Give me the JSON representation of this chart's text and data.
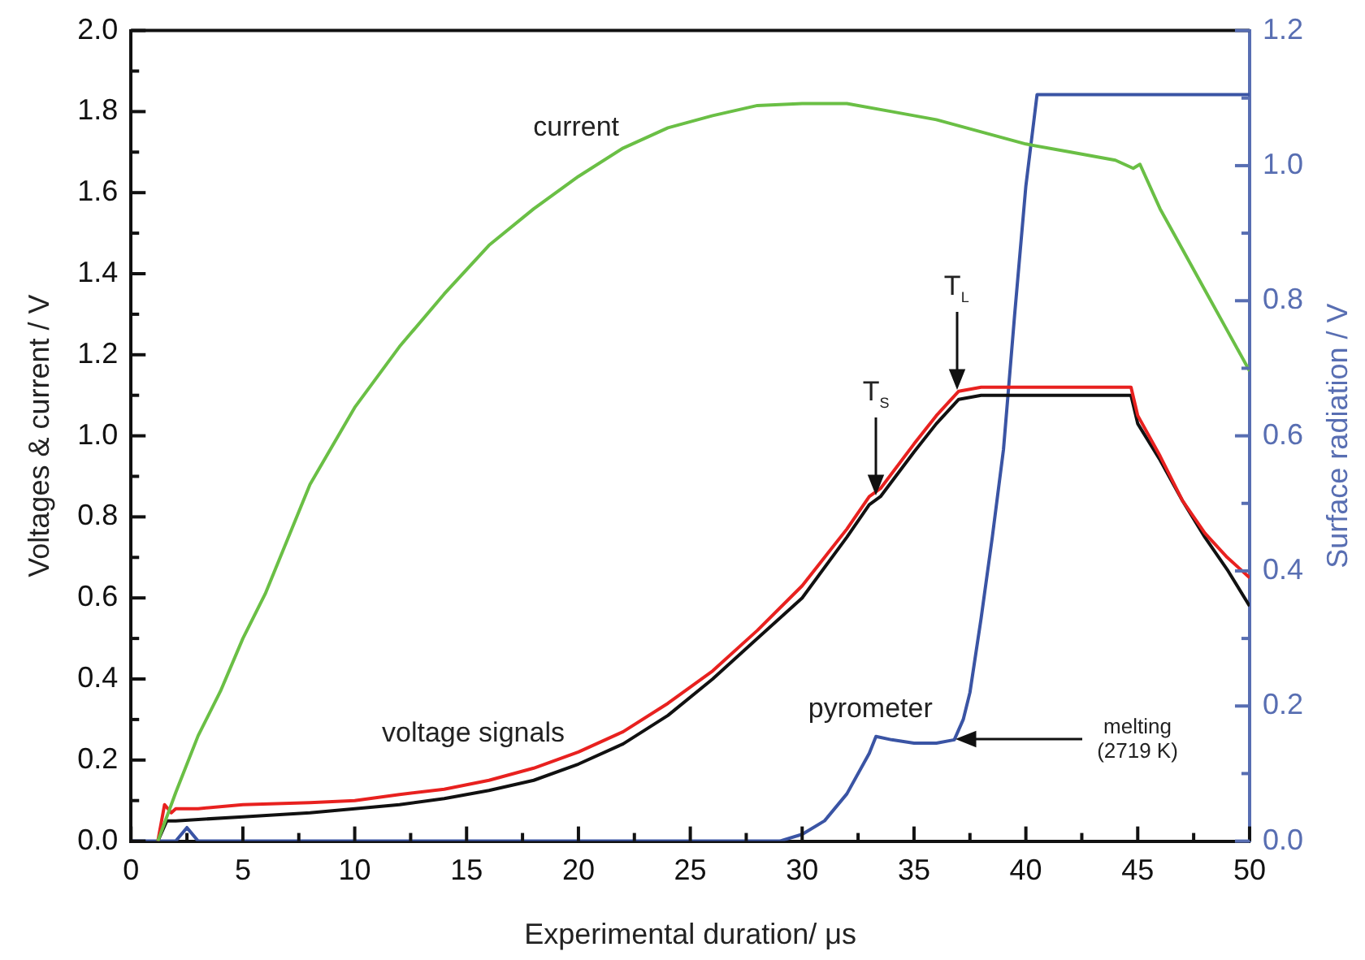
{
  "chart_data": {
    "type": "line",
    "xlabel": "Experimental duration/ μs",
    "ylabel": "Voltages & current / V",
    "y2label": "Surface radiation / V",
    "xlim": [
      0,
      50
    ],
    "xticks": [
      0,
      {
        "value": 2.5,
        "label": null
      },
      5,
      {
        "value": 7.5,
        "label": null
      },
      10,
      {
        "value": 12.5,
        "label": null
      },
      15,
      {
        "value": 17.5,
        "label": null
      },
      20,
      {
        "value": 22.5,
        "label": null
      },
      25,
      {
        "value": 27.5,
        "label": null
      },
      30,
      {
        "value": 32.5,
        "label": null
      },
      35,
      {
        "value": 37.5,
        "label": null
      },
      40,
      {
        "value": 42.5,
        "label": null
      },
      45,
      {
        "value": 47.5,
        "label": null
      },
      50
    ],
    "ylim": [
      0,
      2.0
    ],
    "yticks": [
      {
        "value": 0,
        "label": "0.0"
      },
      {
        "value": 0.1,
        "label": null
      },
      0.2,
      {
        "value": 0.3,
        "label": null
      },
      0.4,
      {
        "value": 0.5,
        "label": null
      },
      0.6,
      {
        "value": 0.7,
        "label": null
      },
      0.8,
      {
        "value": 0.9,
        "label": null
      },
      {
        "value": 1,
        "label": "1.0"
      },
      {
        "value": 1.1,
        "label": null
      },
      1.2,
      {
        "value": 1.3,
        "label": null
      },
      1.4,
      {
        "value": 1.5,
        "label": null
      },
      1.6,
      {
        "value": 1.7,
        "label": null
      },
      1.8,
      {
        "value": 1.9,
        "label": null
      },
      {
        "value": 2,
        "label": "2.0"
      }
    ],
    "y2lim": [
      0,
      1.2
    ],
    "y2ticks": [
      {
        "value": 0,
        "label": "0.0"
      },
      {
        "value": 0.1,
        "label": null
      },
      0.2,
      {
        "value": 0.3,
        "label": null
      },
      0.4,
      {
        "value": 0.5,
        "label": null
      },
      0.6,
      {
        "value": 0.7,
        "label": null
      },
      0.8,
      {
        "value": 0.9,
        "label": null
      },
      {
        "value": 1,
        "label": "1.0"
      },
      {
        "value": 1.1,
        "label": null
      },
      1.2
    ],
    "marker": "none",
    "line_style": "solid",
    "series": [
      {
        "color": "#6abf45",
        "x": [
          1.2,
          2,
          3,
          4,
          5,
          6,
          8,
          10,
          12,
          14,
          16,
          18,
          20,
          22,
          24,
          26,
          28,
          30,
          32,
          34,
          36,
          38,
          40,
          42,
          44,
          44.8,
          45.1,
          46,
          47,
          48,
          49,
          50
        ],
        "values": [
          0,
          0.12,
          0.26,
          0.37,
          0.5,
          0.61,
          0.88,
          1.07,
          1.22,
          1.35,
          1.47,
          1.56,
          1.64,
          1.71,
          1.76,
          1.79,
          1.815,
          1.82,
          1.82,
          1.8,
          1.78,
          1.75,
          1.72,
          1.7,
          1.68,
          1.66,
          1.67,
          1.56,
          1.46,
          1.36,
          1.26,
          1.16
        ]
      },
      {
        "color": "#e8211f",
        "x": [
          1.2,
          1.5,
          1.8,
          2,
          3,
          5,
          8,
          10,
          12,
          14,
          16,
          18,
          20,
          22,
          24,
          26,
          28,
          30,
          32,
          33,
          33.5,
          35,
          36,
          37,
          38,
          40,
          42,
          44,
          44.7,
          45,
          46,
          47,
          48,
          49,
          50
        ],
        "values": [
          0,
          0.09,
          0.07,
          0.08,
          0.08,
          0.09,
          0.095,
          0.1,
          0.115,
          0.128,
          0.15,
          0.18,
          0.22,
          0.27,
          0.34,
          0.42,
          0.52,
          0.63,
          0.77,
          0.85,
          0.87,
          0.98,
          1.05,
          1.11,
          1.12,
          1.12,
          1.12,
          1.12,
          1.12,
          1.05,
          0.95,
          0.84,
          0.76,
          0.7,
          0.65
        ]
      },
      {
        "color": "#111111",
        "x": [
          1.2,
          1.6,
          2,
          5,
          8,
          10,
          12,
          14,
          16,
          18,
          20,
          22,
          24,
          26,
          28,
          30,
          32,
          33,
          33.5,
          35,
          36,
          37,
          38,
          40,
          42,
          44,
          44.7,
          45,
          46,
          47,
          48,
          49,
          50
        ],
        "values": [
          0,
          0.05,
          0.05,
          0.06,
          0.07,
          0.08,
          0.09,
          0.105,
          0.125,
          0.15,
          0.19,
          0.24,
          0.31,
          0.4,
          0.5,
          0.6,
          0.75,
          0.83,
          0.85,
          0.96,
          1.03,
          1.09,
          1.1,
          1.1,
          1.1,
          1.1,
          1.1,
          1.03,
          0.94,
          0.84,
          0.75,
          0.67,
          0.58
        ]
      },
      {
        "color": "#3a54a4",
        "axis": "y2",
        "x": [
          0,
          2,
          2.5,
          3,
          29,
          30,
          31,
          32,
          33,
          33.3,
          34,
          35,
          36,
          36.8,
          37.2,
          37.5,
          38,
          38.5,
          39,
          39.5,
          40,
          40.5,
          50
        ],
        "values": [
          0,
          0,
          0.02,
          0,
          0,
          0.01,
          0.03,
          0.07,
          0.13,
          0.155,
          0.15,
          0.145,
          0.145,
          0.15,
          0.18,
          0.22,
          0.33,
          0.45,
          0.58,
          0.78,
          0.97,
          1.105,
          1.105
        ]
      }
    ],
    "annotations": [
      "current",
      "voltage signals",
      "pyrometer",
      {
        "text": "T$_{S}$",
        "x": 33.3,
        "y": 0.86
      },
      {
        "text": "T$_{L}$",
        "x": 36.9,
        "y": 1.12
      },
      {
        "text": "melting\n(2719 K)",
        "x": 37,
        "y": 0.25
      }
    ]
  }
}
